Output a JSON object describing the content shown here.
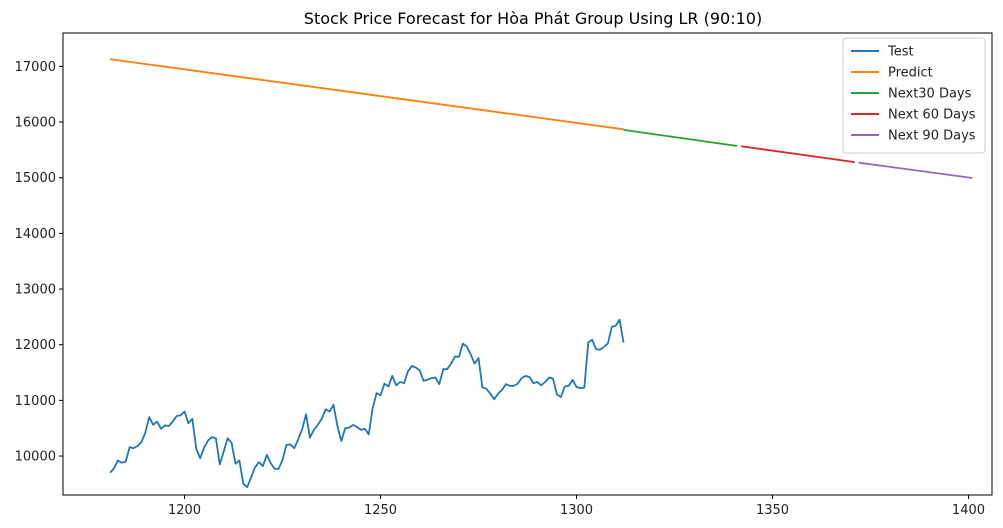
{
  "chart_data": {
    "type": "line",
    "title": "Stock Price Forecast for Hòa Phát Group Using LR (90:10)",
    "xlabel": "",
    "ylabel": "",
    "xlim": [
      1169,
      1406
    ],
    "ylim": [
      9300,
      17600
    ],
    "xticks": [
      1200,
      1250,
      1300,
      1350,
      1400
    ],
    "yticks": [
      10000,
      11000,
      12000,
      13000,
      14000,
      15000,
      16000,
      17000
    ],
    "grid": false,
    "legend_position": "top-right",
    "series": [
      {
        "name": "Test",
        "color": "#1f77b4",
        "x": [
          1181,
          1182,
          1183,
          1184,
          1185,
          1186,
          1187,
          1188,
          1189,
          1190,
          1191,
          1192,
          1193,
          1194,
          1195,
          1196,
          1197,
          1198,
          1199,
          1200,
          1201,
          1202,
          1203,
          1204,
          1205,
          1206,
          1207,
          1208,
          1209,
          1210,
          1211,
          1212,
          1213,
          1214,
          1215,
          1216,
          1217,
          1218,
          1219,
          1220,
          1221,
          1222,
          1223,
          1224,
          1225,
          1226,
          1227,
          1228,
          1229,
          1230,
          1231,
          1232,
          1233,
          1234,
          1235,
          1236,
          1237,
          1238,
          1239,
          1240,
          1241,
          1242,
          1243,
          1244,
          1245,
          1246,
          1247,
          1248,
          1249,
          1250,
          1251,
          1252,
          1253,
          1254,
          1255,
          1256,
          1257,
          1258,
          1259,
          1260,
          1261,
          1262,
          1263,
          1264,
          1265,
          1266,
          1267,
          1268,
          1269,
          1270,
          1271,
          1272,
          1273,
          1274,
          1275,
          1276,
          1277,
          1278,
          1279,
          1280,
          1281,
          1282,
          1283,
          1284,
          1285,
          1286,
          1287,
          1288,
          1289,
          1290,
          1291,
          1292,
          1293,
          1294,
          1295,
          1296,
          1297,
          1298,
          1299,
          1300,
          1301,
          1302,
          1303,
          1304,
          1305,
          1306,
          1307,
          1308,
          1309,
          1310,
          1311,
          1312
        ],
        "y": [
          9700,
          9780,
          9920,
          9880,
          9900,
          10160,
          10140,
          10180,
          10250,
          10420,
          10700,
          10560,
          10620,
          10490,
          10550,
          10540,
          10620,
          10720,
          10730,
          10800,
          10590,
          10670,
          10130,
          9960,
          10150,
          10280,
          10340,
          10320,
          9850,
          10080,
          10320,
          10240,
          9860,
          9920,
          9500,
          9440,
          9620,
          9800,
          9890,
          9820,
          10020,
          9870,
          9770,
          9770,
          9930,
          10200,
          10210,
          10140,
          10300,
          10480,
          10750,
          10330,
          10470,
          10560,
          10670,
          10840,
          10800,
          10920,
          10540,
          10270,
          10500,
          10510,
          10560,
          10520,
          10470,
          10490,
          10390,
          10860,
          11130,
          11090,
          11300,
          11250,
          11440,
          11270,
          11330,
          11310,
          11520,
          11620,
          11590,
          11540,
          11350,
          11370,
          11400,
          11410,
          11290,
          11560,
          11560,
          11660,
          11790,
          11780,
          12020,
          11970,
          11830,
          11660,
          11760,
          11230,
          11210,
          11120,
          11020,
          11120,
          11190,
          11290,
          11260,
          11260,
          11300,
          11400,
          11440,
          11420,
          11310,
          11330,
          11270,
          11330,
          11410,
          11390,
          11110,
          11060,
          11250,
          11260,
          11370,
          11240,
          11220,
          11230,
          12040,
          12090,
          11920,
          11910,
          11960,
          12020,
          12320,
          12340,
          12450,
          12040
        ]
      },
      {
        "name": "Predict",
        "color": "#ff7f0e",
        "x": [
          1181,
          1312
        ],
        "y": [
          17130,
          15870
        ]
      },
      {
        "name": "Next30 Days",
        "color": "#2ca02c",
        "x": [
          1312,
          1341
        ],
        "y": [
          15860,
          15570
        ]
      },
      {
        "name": "Next 60 Days",
        "color": "#d62728",
        "x": [
          1342,
          1371
        ],
        "y": [
          15565,
          15280
        ]
      },
      {
        "name": "Next 90 Days",
        "color": "#9467bd",
        "x": [
          1372,
          1401
        ],
        "y": [
          15270,
          14995
        ]
      }
    ]
  }
}
